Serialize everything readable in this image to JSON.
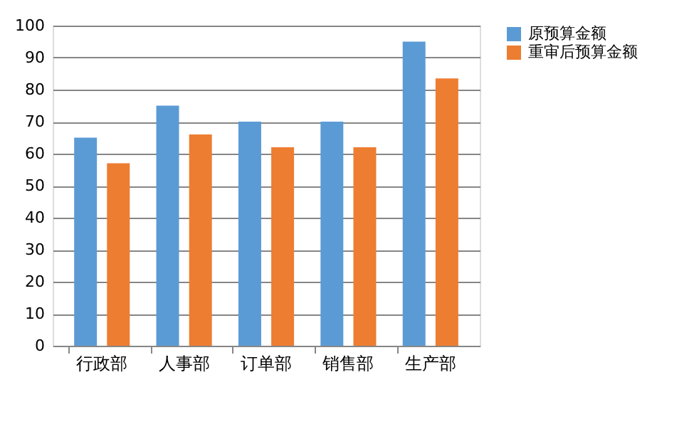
{
  "chart_data": {
    "type": "bar",
    "categories": [
      "行政部",
      "人事部",
      "订单部",
      "销售部",
      "生产部"
    ],
    "series": [
      {
        "name": "原预算金额",
        "color": "#5b9bd5",
        "values": [
          65,
          75,
          70,
          70,
          95
        ]
      },
      {
        "name": "重审后预算金额",
        "color": "#ed7d31",
        "values": [
          57,
          66,
          62,
          62,
          83.5
        ]
      }
    ],
    "ylim": [
      0,
      100
    ],
    "yticks": [
      0,
      10,
      20,
      30,
      40,
      50,
      60,
      70,
      80,
      90,
      100
    ],
    "grid": "y",
    "legend": "right"
  }
}
